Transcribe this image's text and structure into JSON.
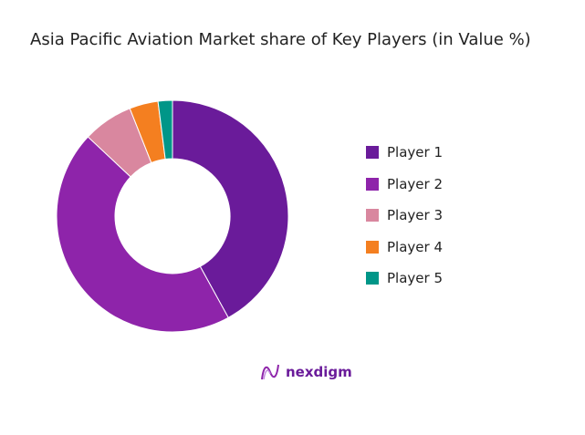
{
  "chart_data": {
    "type": "pie",
    "subtype": "donut",
    "title": "Asia Pacific Aviation Market share of Key Players (in Value %)",
    "categories": [
      "Player 1",
      "Player 2",
      "Player 3",
      "Player 4",
      "Player 5"
    ],
    "values": [
      42,
      45,
      7,
      4,
      2
    ],
    "colors": [
      "#6a1b9a",
      "#8e24aa",
      "#d9879f",
      "#f47f20",
      "#009688"
    ],
    "legend_position": "right"
  },
  "logo": {
    "text": "nexdigm"
  }
}
